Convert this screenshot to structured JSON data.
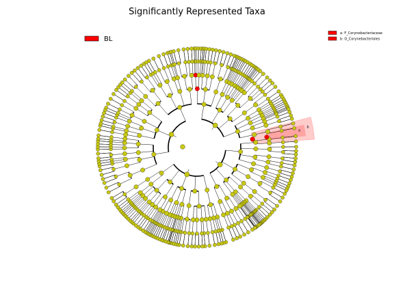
{
  "title": "Significantly Represented Taxa",
  "group_legend": [
    {
      "label": "BL",
      "color": "#ff0000"
    }
  ],
  "clade_legend": [
    {
      "text": "a: F_Corynebacteriaceae",
      "color": "#ff0000"
    },
    {
      "text": "b: O_Corynebacteriales",
      "color": "#ff0000"
    }
  ],
  "clade_markers": [
    "a",
    "b"
  ],
  "colors": {
    "node_default": "#c8c814",
    "node_significant": "#ff0000",
    "highlight_inner": "#ff9999",
    "highlight_outer": "#ffcccc",
    "edge": "#000000"
  }
}
